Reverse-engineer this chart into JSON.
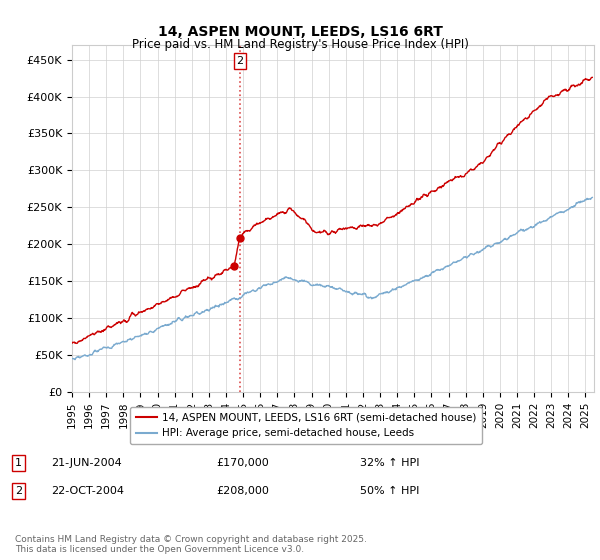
{
  "title": "14, ASPEN MOUNT, LEEDS, LS16 6RT",
  "subtitle": "Price paid vs. HM Land Registry's House Price Index (HPI)",
  "ylabel_ticks": [
    "£0",
    "£50K",
    "£100K",
    "£150K",
    "£200K",
    "£250K",
    "£300K",
    "£350K",
    "£400K",
    "£450K"
  ],
  "ytick_values": [
    0,
    50000,
    100000,
    150000,
    200000,
    250000,
    300000,
    350000,
    400000,
    450000
  ],
  "ylim": [
    0,
    470000
  ],
  "red_color": "#cc0000",
  "blue_color": "#7aaacf",
  "sale1_x": 2004.47,
  "sale1_y": 170000,
  "sale2_x": 2004.81,
  "sale2_y": 208000,
  "vline_x": 2004.81,
  "legend_line1": "14, ASPEN MOUNT, LEEDS, LS16 6RT (semi-detached house)",
  "legend_line2": "HPI: Average price, semi-detached house, Leeds",
  "ann1_label": "1",
  "ann1_date": "21-JUN-2004",
  "ann1_price": "£170,000",
  "ann1_pct": "32% ↑ HPI",
  "ann2_label": "2",
  "ann2_date": "22-OCT-2004",
  "ann2_price": "£208,000",
  "ann2_pct": "50% ↑ HPI",
  "footer": "Contains HM Land Registry data © Crown copyright and database right 2025.\nThis data is licensed under the Open Government Licence v3.0.",
  "xmin": 1995,
  "xmax": 2025.5
}
